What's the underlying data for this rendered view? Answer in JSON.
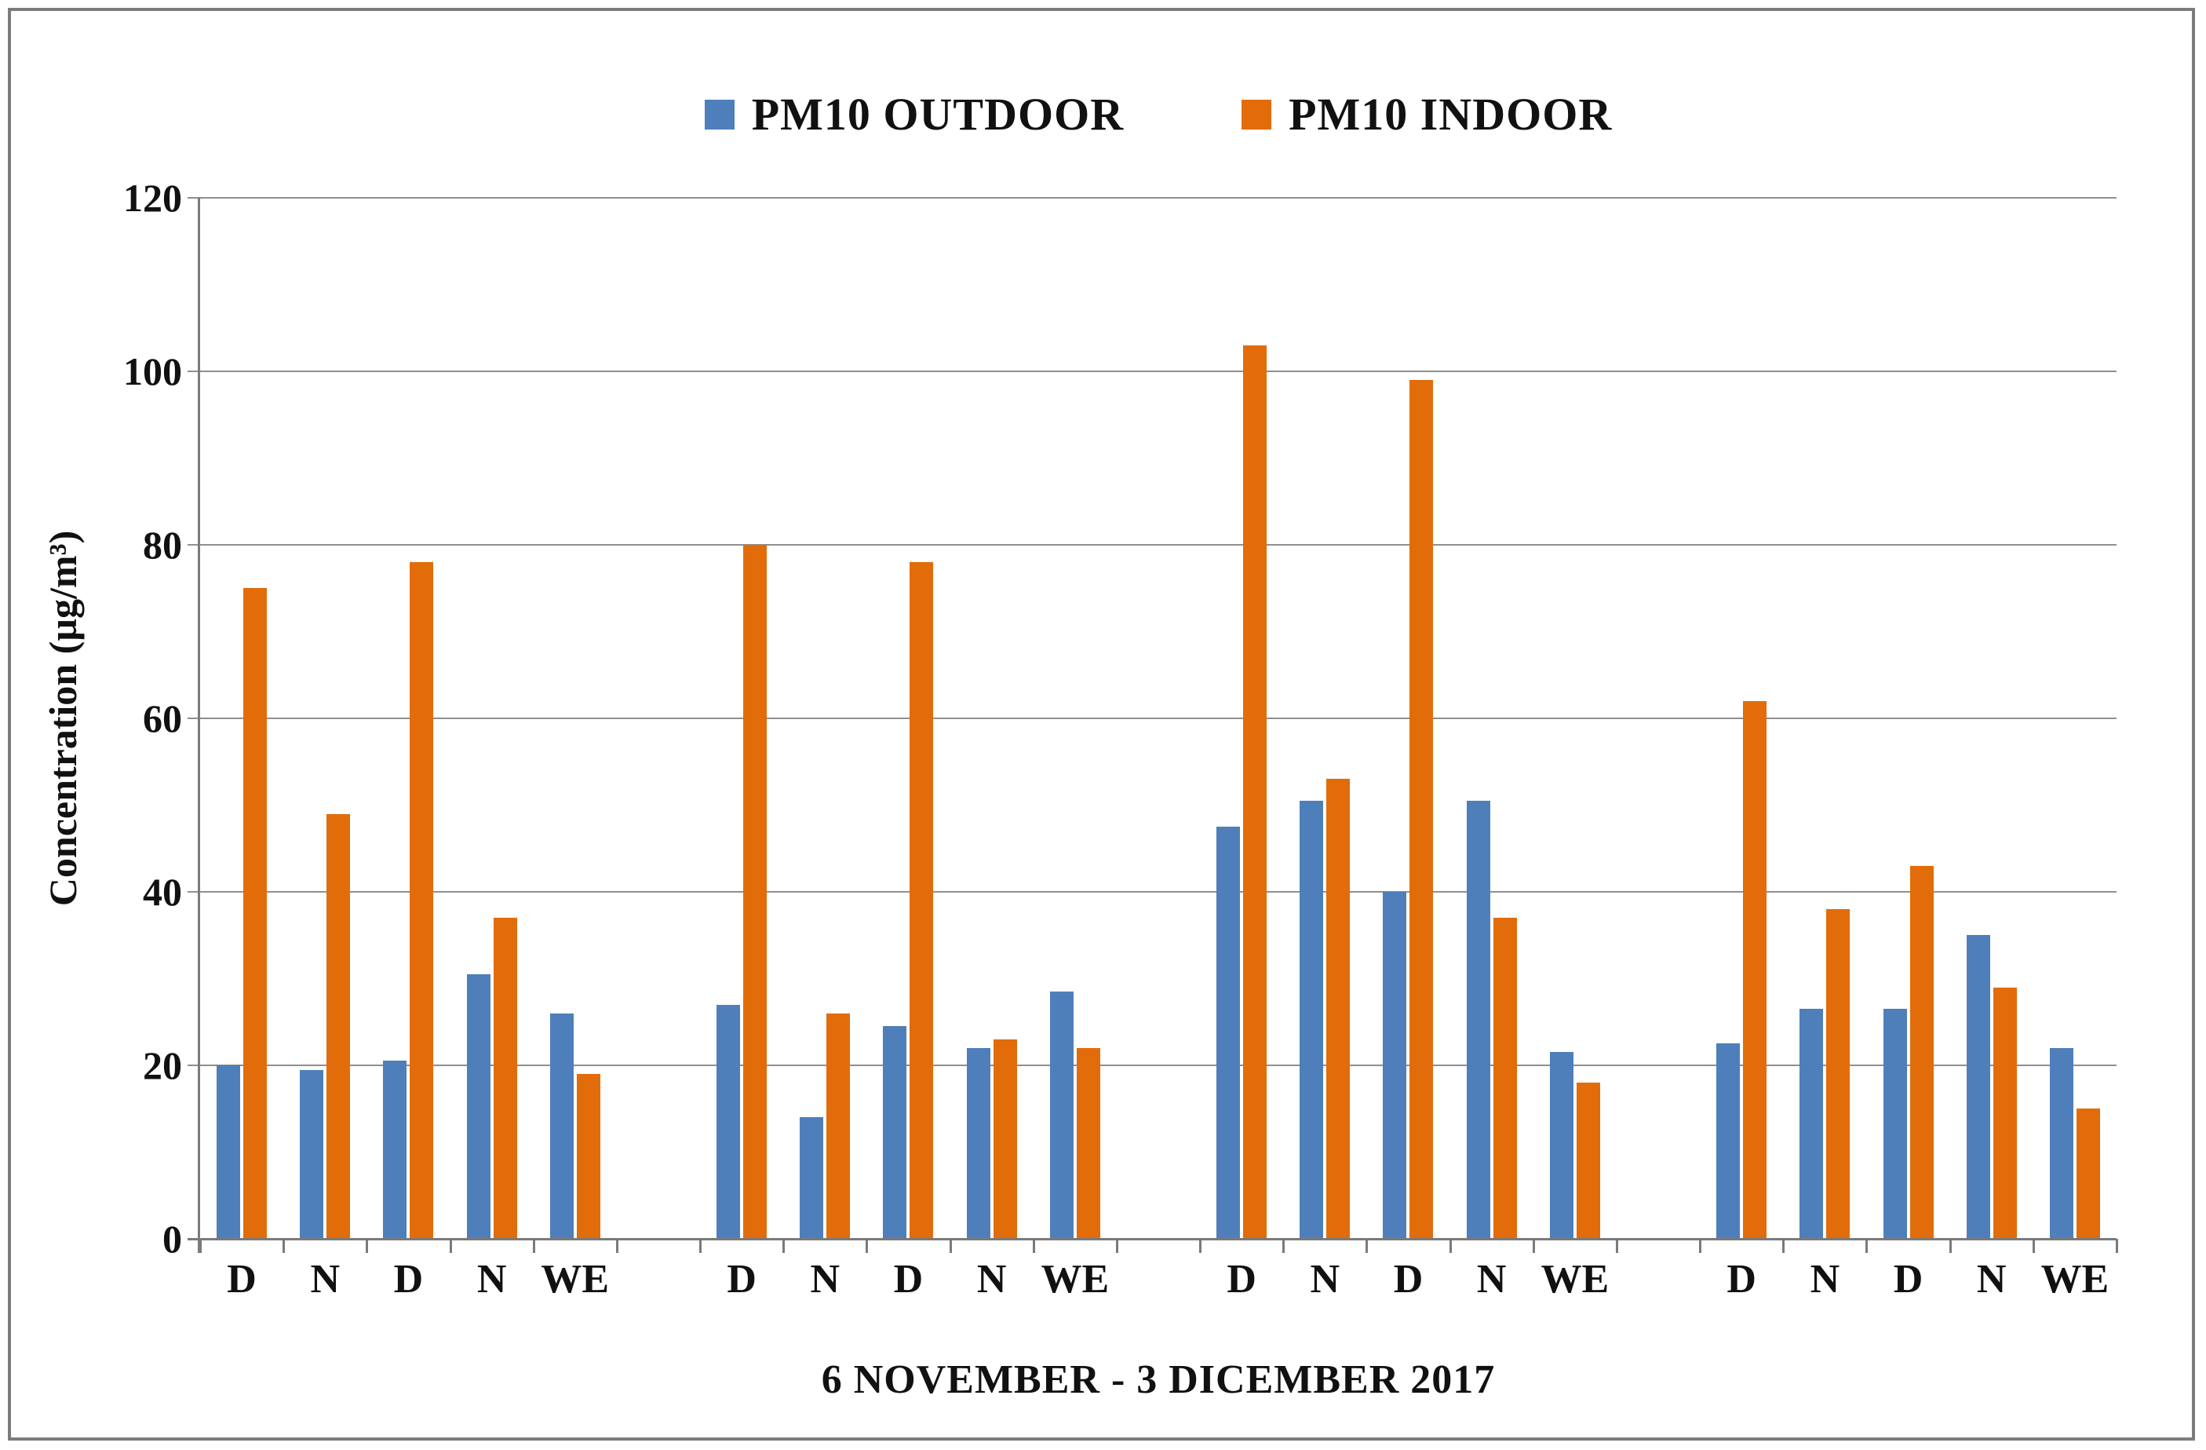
{
  "chart_data": {
    "type": "bar",
    "title": "",
    "xlabel": "6 NOVEMBER - 3 DICEMBER 2017",
    "ylabel": "Concentration (µg/m³)",
    "ylim": [
      0,
      120
    ],
    "yticks": [
      120,
      100,
      80,
      60,
      40,
      20,
      0
    ],
    "grid": true,
    "legend_position": "top-center",
    "categories": [
      "D",
      "N",
      "D",
      "N",
      "WE",
      "",
      "D",
      "N",
      "D",
      "N",
      "WE",
      "",
      "D",
      "N",
      "D",
      "N",
      "WE",
      "",
      "D",
      "N",
      "D",
      "N",
      "WE"
    ],
    "series": [
      {
        "name": "PM10 OUTDOOR",
        "color": "#4E7FBA",
        "values": [
          20,
          19.5,
          20.5,
          30.5,
          26,
          null,
          27,
          14,
          24.5,
          22,
          28.5,
          null,
          47.5,
          50.5,
          40,
          50.5,
          21.5,
          null,
          22.5,
          26.5,
          26.5,
          35,
          22
        ]
      },
      {
        "name": "PM10 INDOOR",
        "color": "#E36C0A",
        "values": [
          75,
          49,
          78,
          37,
          19,
          null,
          80,
          26,
          78,
          23,
          22,
          null,
          103,
          53,
          99,
          37,
          18,
          null,
          62,
          38,
          43,
          29,
          15
        ]
      }
    ]
  },
  "frame": {
    "border_color": "#7c7c7c"
  }
}
